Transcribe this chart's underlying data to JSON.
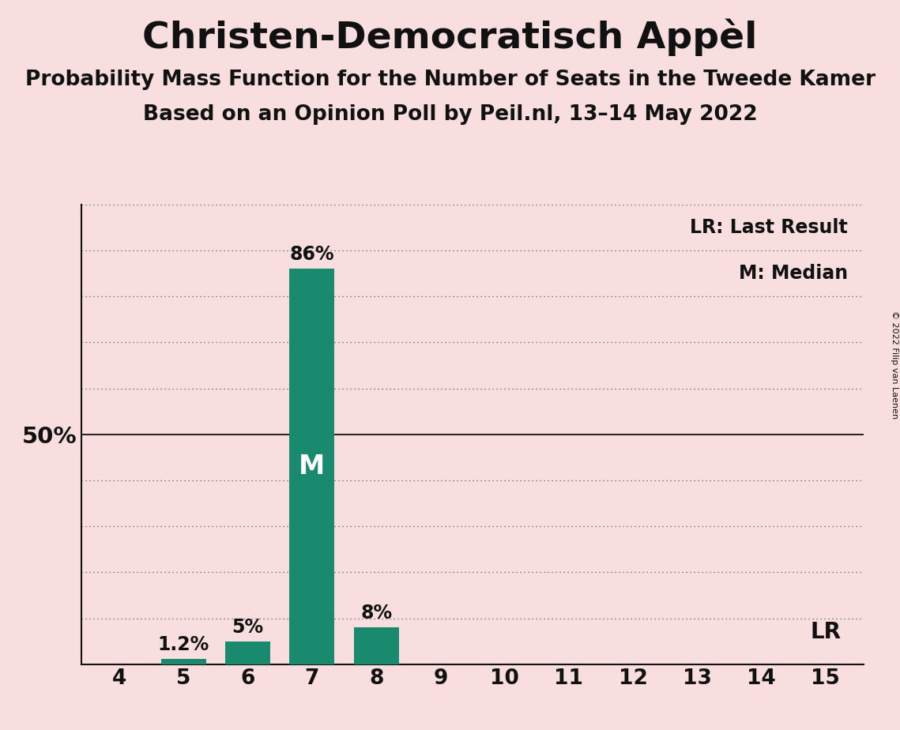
{
  "title": "Christen-Democratisch Appèl",
  "subtitle1": "Probability Mass Function for the Number of Seats in the Tweede Kamer",
  "subtitle2": "Based on an Opinion Poll by Peil.nl, 13–14 May 2022",
  "copyright": "© 2022 Filip van Laenen",
  "seats": [
    4,
    5,
    6,
    7,
    8,
    9,
    10,
    11,
    12,
    13,
    14,
    15
  ],
  "probabilities": [
    0.0,
    1.2,
    5.0,
    86.0,
    8.0,
    0.0,
    0.0,
    0.0,
    0.0,
    0.0,
    0.0,
    0.0
  ],
  "bar_color": "#1a8a6e",
  "background_color": "#f8dede",
  "median_seat": 7,
  "last_result_seat": 15,
  "ylim": [
    0,
    100
  ],
  "yticks": [
    0,
    10,
    20,
    30,
    40,
    50,
    60,
    70,
    80,
    90,
    100
  ],
  "legend_lr": "LR: Last Result",
  "legend_m": "M: Median",
  "annotation_lr": "LR",
  "annotation_m": "M",
  "title_fontsize": 34,
  "subtitle_fontsize": 19,
  "bar_label_fontsize": 17,
  "axis_tick_fontsize": 19,
  "legend_fontsize": 17,
  "ylabel_fontsize": 21,
  "dotted_line_color": "#555555",
  "solid_line_color": "#111111",
  "text_color": "#111111"
}
